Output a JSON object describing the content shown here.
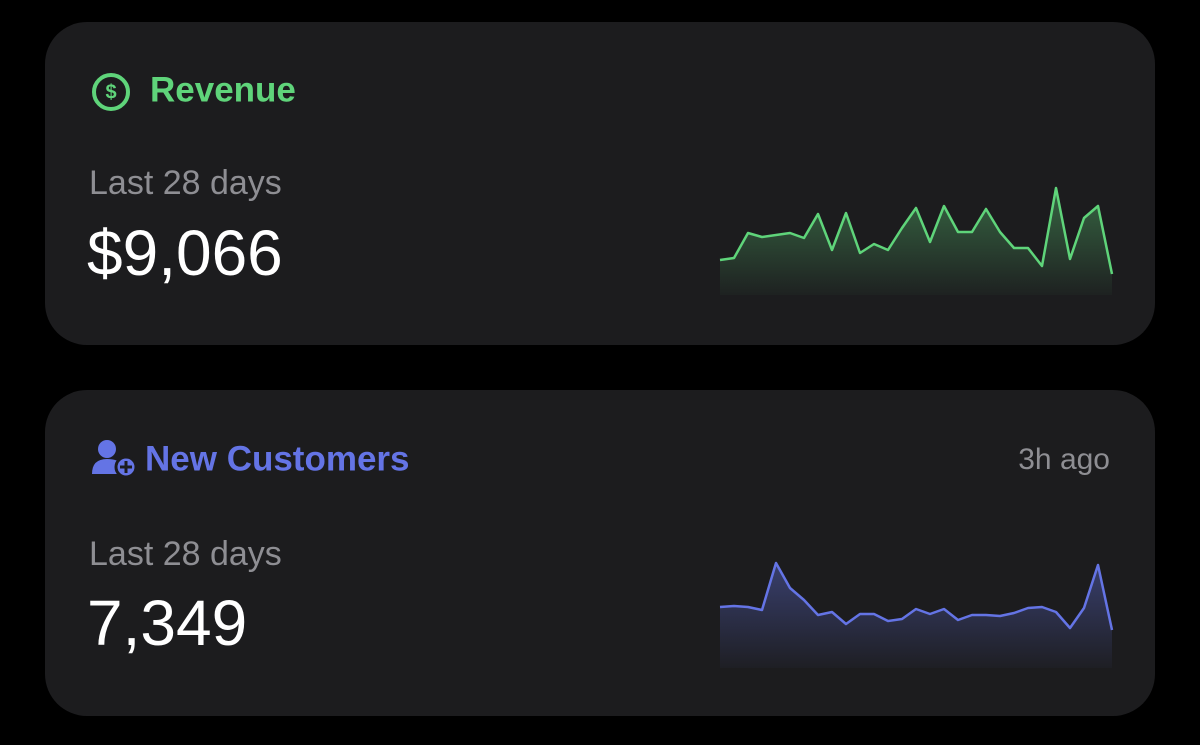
{
  "cards": [
    {
      "title": "Revenue",
      "period": "Last 28 days",
      "value": "$9,066",
      "color": "#5fd47a",
      "sparkline": [
        40,
        42,
        67,
        63,
        65,
        67,
        62,
        86,
        50,
        87,
        47,
        56,
        50,
        72,
        92,
        58,
        94,
        68,
        68,
        91,
        68,
        52,
        52,
        34,
        112,
        41,
        82,
        94,
        26
      ]
    },
    {
      "title": "New Customers",
      "time": "3h ago",
      "period": "Last 28 days",
      "value": "7,349",
      "color": "#6474e5",
      "sparkline": [
        63,
        64,
        63,
        60,
        107,
        82,
        70,
        55,
        58,
        46,
        56,
        56,
        49,
        51,
        61,
        56,
        61,
        50,
        55,
        55,
        54,
        57,
        62,
        63,
        58,
        42,
        62,
        105,
        40
      ]
    }
  ]
}
